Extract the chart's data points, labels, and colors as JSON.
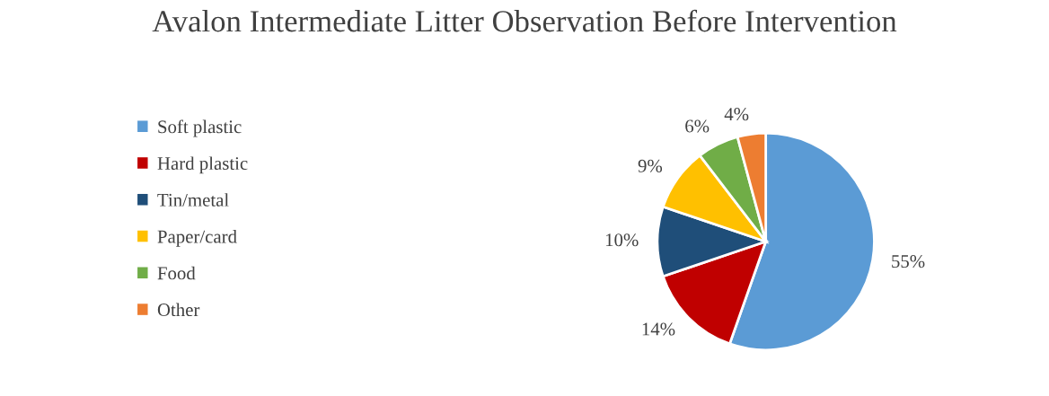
{
  "chart_data": {
    "type": "pie",
    "title": "Avalon Intermediate Litter Observation Before Intervention",
    "categories": [
      "Soft plastic",
      "Hard plastic",
      "Tin/metal",
      "Paper/card",
      "Food",
      "Other"
    ],
    "values": [
      55.4,
      14.4,
      10.4,
      9.4,
      6.2,
      4.2
    ],
    "value_labels": [
      "55%",
      "14%",
      "10%",
      "9%",
      "6%",
      "4%"
    ],
    "colors": [
      "#5b9bd5",
      "#c00000",
      "#1f4e79",
      "#ffc000",
      "#70ad47",
      "#ed7d31"
    ],
    "legend": "left"
  }
}
